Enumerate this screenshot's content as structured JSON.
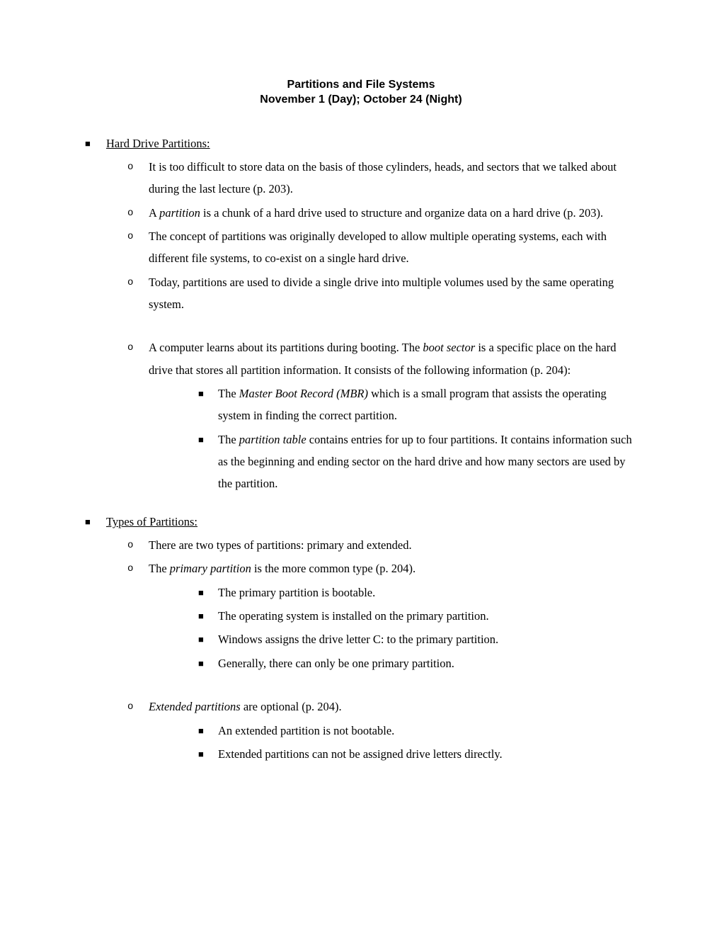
{
  "title": {
    "line1": "Partitions and File Systems",
    "line2": "November 1 (Day); October 24 (Night)"
  },
  "bullets": {
    "square": "■",
    "circle": "o"
  },
  "sections": [
    {
      "heading": "Hard Drive Partitions:",
      "items": [
        {
          "html": "It is too difficult to store data on the basis of those cylinders, heads, and sectors that we talked about during the last lecture (p. 203)."
        },
        {
          "html": "A <em class='term'>partition</em> is a chunk of a hard drive used to structure and organize data on a hard drive (p. 203)."
        },
        {
          "html": "The concept of partitions was originally developed to allow multiple operating systems, each with different file systems, to co-exist on a single hard drive."
        },
        {
          "html": "Today, partitions are used to divide a single drive into multiple volumes used by the same operating system."
        },
        {
          "gap": true
        },
        {
          "html": "A computer learns about its partitions during booting.  The <em class='term'>boot sector</em> is a specific place on the hard drive that stores all partition information.  It consists of the following information (p. 204):",
          "sub": [
            {
              "html": "The <em class='term'>Master Boot Record (MBR)</em> which is a small program that assists the operating system in finding the correct partition."
            },
            {
              "html": "The <em class='term'>partition table</em> contains entries for up to four partitions.  It contains information such as the beginning and ending sector on the hard drive and how many sectors are used by the partition."
            }
          ]
        }
      ]
    },
    {
      "gapBefore": true,
      "heading": "Types of Partitions:",
      "items": [
        {
          "html": "There are two types of partitions: primary and extended."
        },
        {
          "html": "The <em class='term'>primary partition</em> is the more common type (p. 204).",
          "sub": [
            {
              "html": "The primary partition is bootable."
            },
            {
              "html": "The operating system is installed on the primary partition."
            },
            {
              "html": "Windows assigns the drive letter C: to the primary partition."
            },
            {
              "html": "Generally, there can only be one primary partition."
            }
          ]
        },
        {
          "gap": true
        },
        {
          "html": "<em class='term'>Extended partitions</em> are optional (p. 204).",
          "sub": [
            {
              "html": "An extended partition is not bootable."
            },
            {
              "html": "Extended partitions can not be assigned drive letters directly."
            }
          ]
        }
      ]
    }
  ]
}
